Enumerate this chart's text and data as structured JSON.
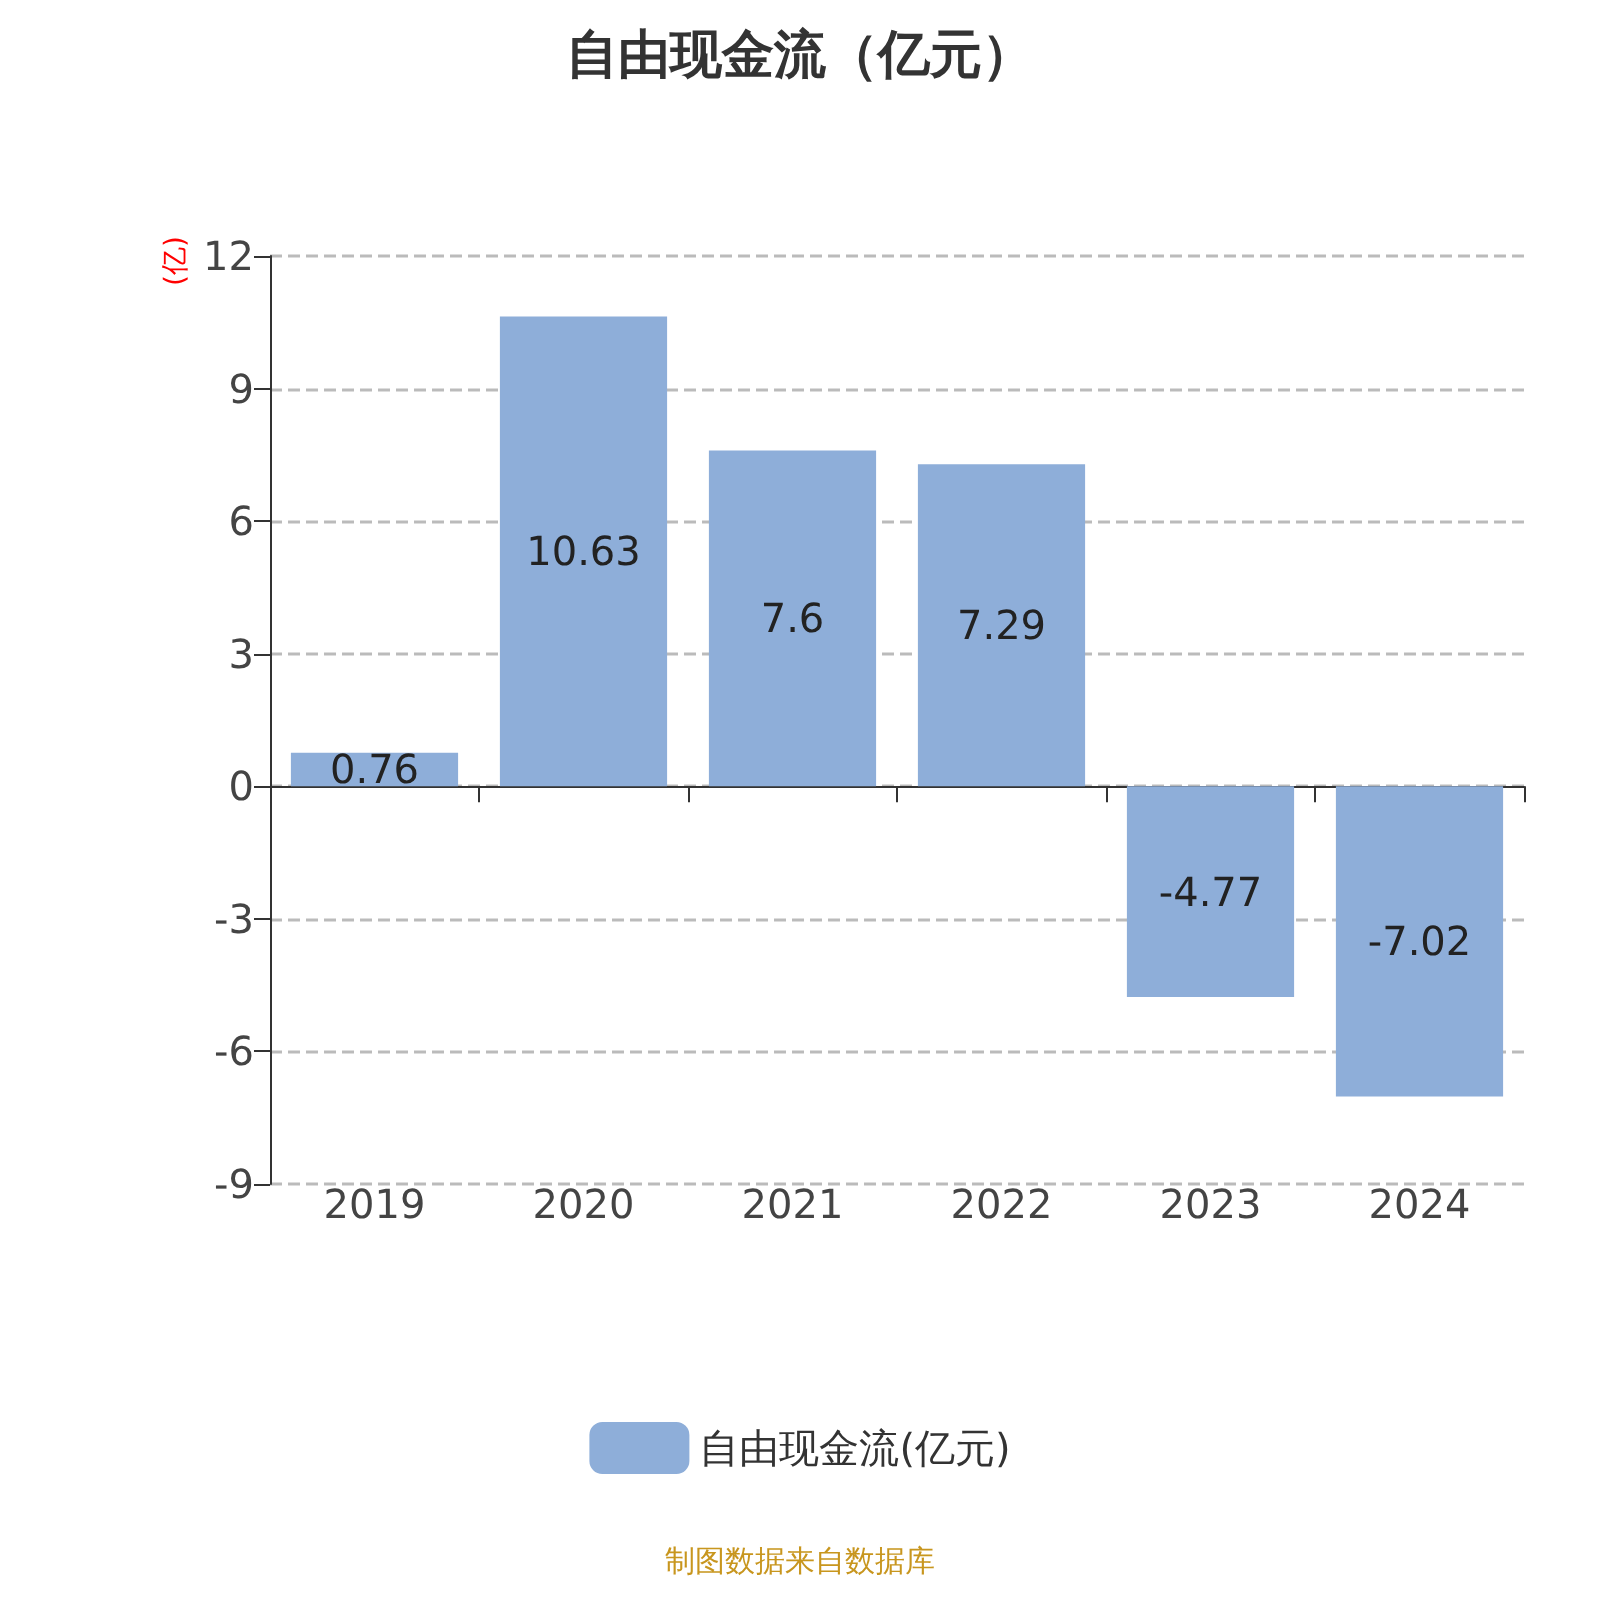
{
  "chart_data": {
    "type": "bar",
    "title": "自由现金流（亿元）",
    "ylabel": "(亿)",
    "categories": [
      "2019",
      "2020",
      "2021",
      "2022",
      "2023",
      "2024"
    ],
    "series": [
      {
        "name": "自由现金流(亿元)",
        "color": "#8eaed9",
        "values": [
          0.76,
          10.63,
          7.6,
          7.29,
          -4.77,
          -7.02
        ]
      }
    ],
    "ylim": [
      -9,
      12
    ],
    "yticks": [
      -9,
      -6,
      -3,
      0,
      3,
      6,
      9,
      12
    ],
    "grid": "y",
    "legend": "bottom",
    "data_labels": true,
    "annotations": [
      "制图数据来自数据库"
    ]
  }
}
